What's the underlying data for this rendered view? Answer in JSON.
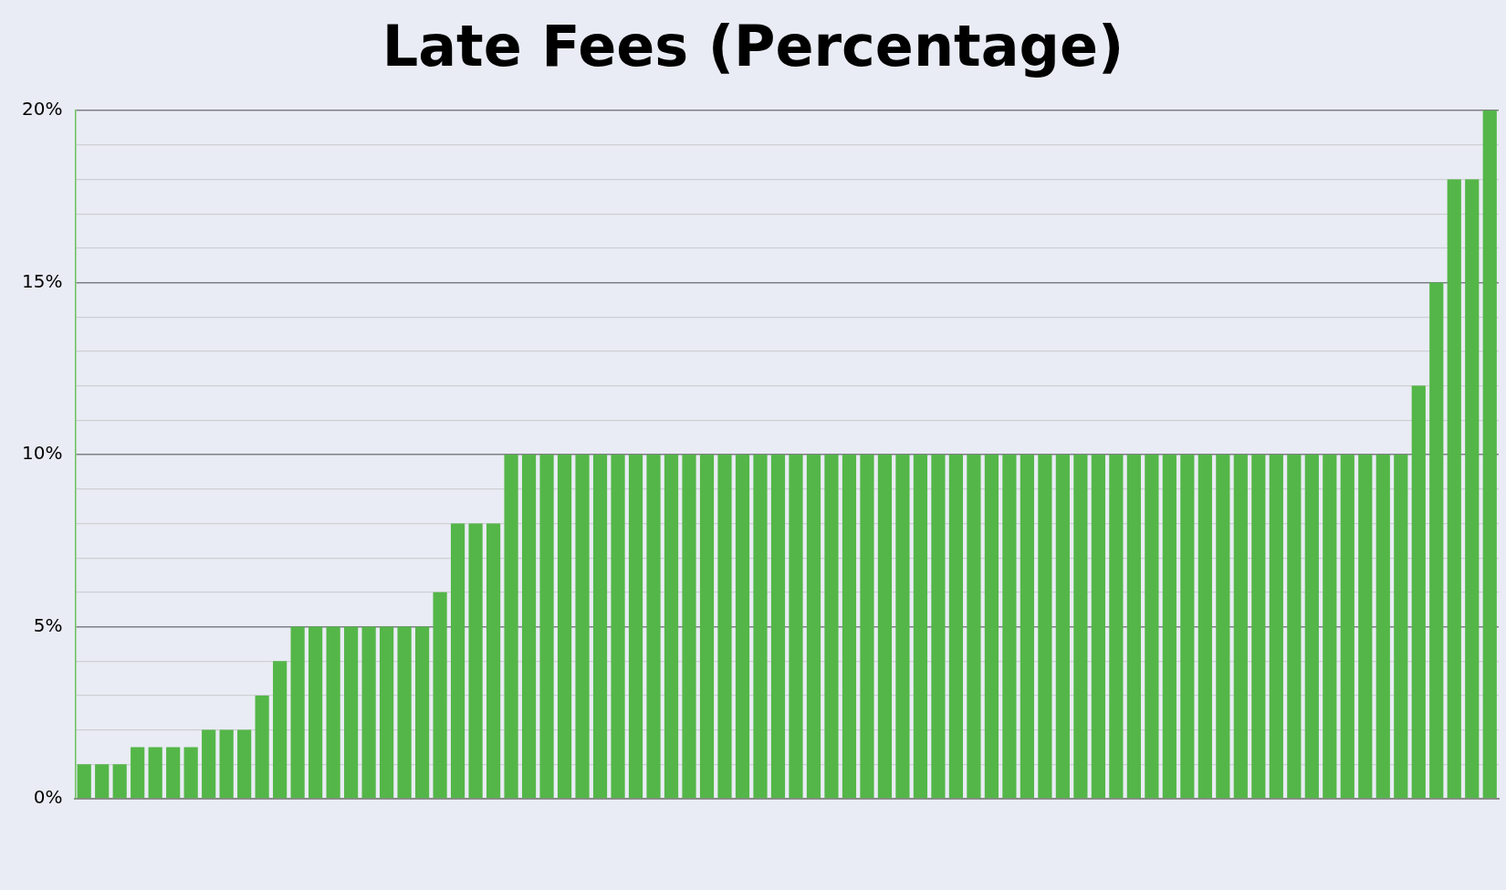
{
  "chart_data": {
    "type": "bar",
    "title": "Late Fees (Percentage)",
    "categories": [
      null,
      null,
      null,
      null,
      null,
      null,
      null,
      null,
      null,
      null,
      null,
      null,
      null,
      null,
      null,
      null,
      null,
      null,
      null,
      null,
      null,
      null,
      null,
      null,
      null,
      null,
      null,
      null,
      null,
      null,
      null,
      null,
      null,
      null,
      null,
      null,
      null,
      null,
      null,
      null,
      null,
      null,
      null,
      null,
      null,
      null,
      null,
      null,
      null,
      null,
      null,
      null,
      null,
      null,
      null,
      null,
      null,
      null,
      null,
      null,
      null,
      null,
      null,
      null,
      null,
      null,
      null,
      null,
      null,
      null,
      null,
      null,
      null,
      null,
      null,
      null,
      null,
      null,
      null,
      null
    ],
    "values": [
      1,
      1,
      1,
      1.5,
      1.5,
      1.5,
      1.5,
      2,
      2,
      2,
      3,
      4,
      5,
      5,
      5,
      5,
      5,
      5,
      5,
      5,
      6,
      8,
      8,
      8,
      10,
      10,
      10,
      10,
      10,
      10,
      10,
      10,
      10,
      10,
      10,
      10,
      10,
      10,
      10,
      10,
      10,
      10,
      10,
      10,
      10,
      10,
      10,
      10,
      10,
      10,
      10,
      10,
      10,
      10,
      10,
      10,
      10,
      10,
      10,
      10,
      10,
      10,
      10,
      10,
      10,
      10,
      10,
      10,
      10,
      10,
      10,
      10,
      10,
      10,
      10,
      12,
      15,
      18,
      18,
      20
    ],
    "color": "#54b648",
    "ylim": [
      0,
      20
    ],
    "yticks": [
      {
        "value": 0,
        "label": "0%"
      },
      {
        "value": 1,
        "label": null
      },
      {
        "value": 2,
        "label": null
      },
      {
        "value": 3,
        "label": null
      },
      {
        "value": 4,
        "label": null
      },
      {
        "value": 5,
        "label": "5%"
      },
      {
        "value": 6,
        "label": null
      },
      {
        "value": 7,
        "label": null
      },
      {
        "value": 8,
        "label": null
      },
      {
        "value": 9,
        "label": null
      },
      {
        "value": 10,
        "label": "10%"
      },
      {
        "value": 11,
        "label": null
      },
      {
        "value": 12,
        "label": null
      },
      {
        "value": 13,
        "label": null
      },
      {
        "value": 14,
        "label": null
      },
      {
        "value": 15,
        "label": "15%"
      },
      {
        "value": 16,
        "label": null
      },
      {
        "value": 17,
        "label": null
      },
      {
        "value": 18,
        "label": null
      },
      {
        "value": 19,
        "label": null
      },
      {
        "value": 20,
        "label": "20%"
      }
    ],
    "grid": "y"
  }
}
